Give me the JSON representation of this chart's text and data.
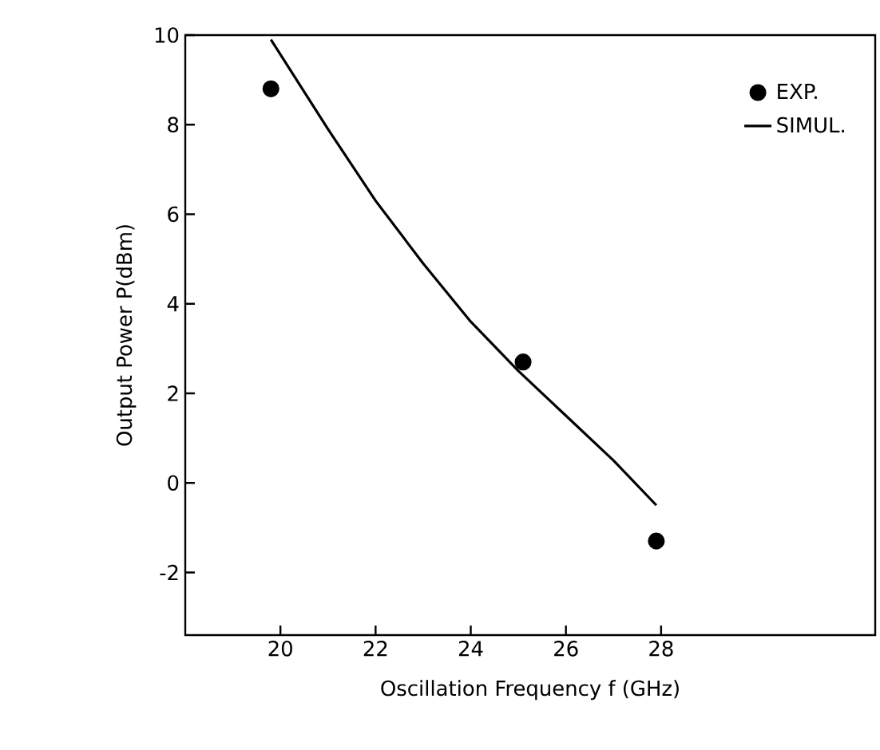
{
  "chart_data": {
    "type": "scatter",
    "xlabel": "Oscillation Frequency f (GHz)",
    "ylabel": "Output Power P(dBm)",
    "xlim": [
      18,
      32.5
    ],
    "ylim": [
      -3.4,
      10
    ],
    "xticks": [
      20,
      22,
      24,
      26,
      28
    ],
    "yticks": [
      -2,
      0,
      2,
      4,
      6,
      8,
      10
    ],
    "legend": "top right",
    "series": [
      {
        "name": "EXP.",
        "marker": "circle",
        "color": "#000000",
        "x": [
          19.8,
          25.1,
          27.9
        ],
        "values": [
          8.8,
          2.7,
          -1.3
        ]
      },
      {
        "name": "SIMUL.",
        "type": "line",
        "marker": "none",
        "line_style": "solid",
        "color": "#000000",
        "x": [
          19.8,
          21,
          22,
          23,
          24,
          25,
          26,
          27,
          27.9
        ],
        "values": [
          9.9,
          7.9,
          6.3,
          4.9,
          3.6,
          2.5,
          1.5,
          0.5,
          -0.5
        ]
      }
    ]
  }
}
